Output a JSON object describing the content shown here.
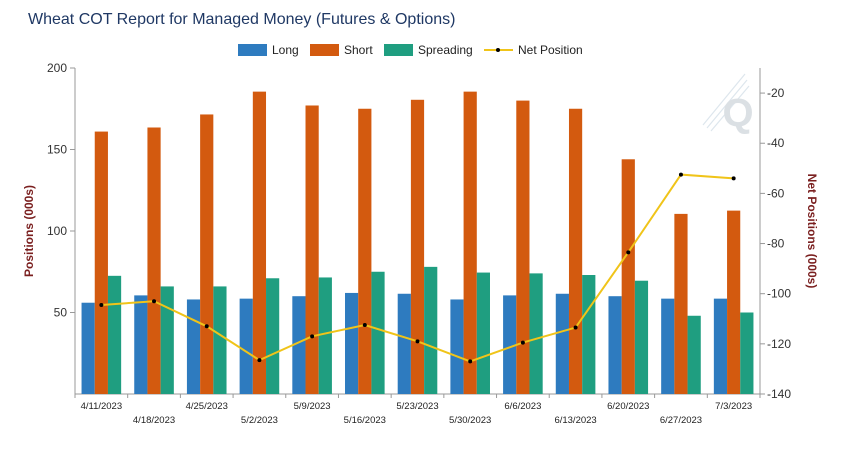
{
  "chart_data": {
    "type": "bar",
    "title": "Wheat COT Report for Managed Money (Futures & Options)",
    "categories": [
      "4/11/2023",
      "4/18/2023",
      "4/25/2023",
      "5/2/2023",
      "5/9/2023",
      "5/16/2023",
      "5/23/2023",
      "5/30/2023",
      "6/6/2023",
      "6/13/2023",
      "6/20/2023",
      "6/27/2023",
      "7/3/2023"
    ],
    "series": [
      {
        "name": "Long",
        "axis": "left",
        "kind": "bar",
        "color": "#2e7bbf",
        "values": [
          56,
          60.5,
          58,
          58.5,
          60,
          62,
          61.5,
          58,
          60.5,
          61.5,
          60,
          58.5,
          58.5
        ]
      },
      {
        "name": "Short",
        "axis": "left",
        "kind": "bar",
        "color": "#d35a0f",
        "values": [
          161,
          163.5,
          171.5,
          185.5,
          177,
          175,
          180.5,
          185.5,
          180,
          175,
          144,
          110.5,
          112.5
        ]
      },
      {
        "name": "Spreading",
        "axis": "left",
        "kind": "bar",
        "color": "#1f9e80",
        "values": [
          72.5,
          66,
          66,
          71,
          71.5,
          75,
          78,
          74.5,
          74,
          73,
          69.5,
          48,
          50
        ]
      },
      {
        "name": "Net Position",
        "axis": "right",
        "kind": "line",
        "color": "#f0c419",
        "values": [
          -104.5,
          -103,
          -113,
          -126.5,
          -117,
          -112.5,
          -119,
          -127,
          -119.5,
          -113.5,
          -83.5,
          -52.5,
          -54
        ]
      }
    ],
    "ylabel": "Positions (000s)",
    "ylim": [
      0,
      200
    ],
    "yticks": [
      50,
      100,
      150,
      200
    ],
    "y2label": "Net Positions (000s)",
    "y2lim": [
      -140,
      -10
    ],
    "y2ticks": [
      -20,
      -40,
      -60,
      -80,
      -100,
      -120,
      -140
    ],
    "grid": false,
    "legend_position": "top"
  },
  "watermark_letter": "Q"
}
